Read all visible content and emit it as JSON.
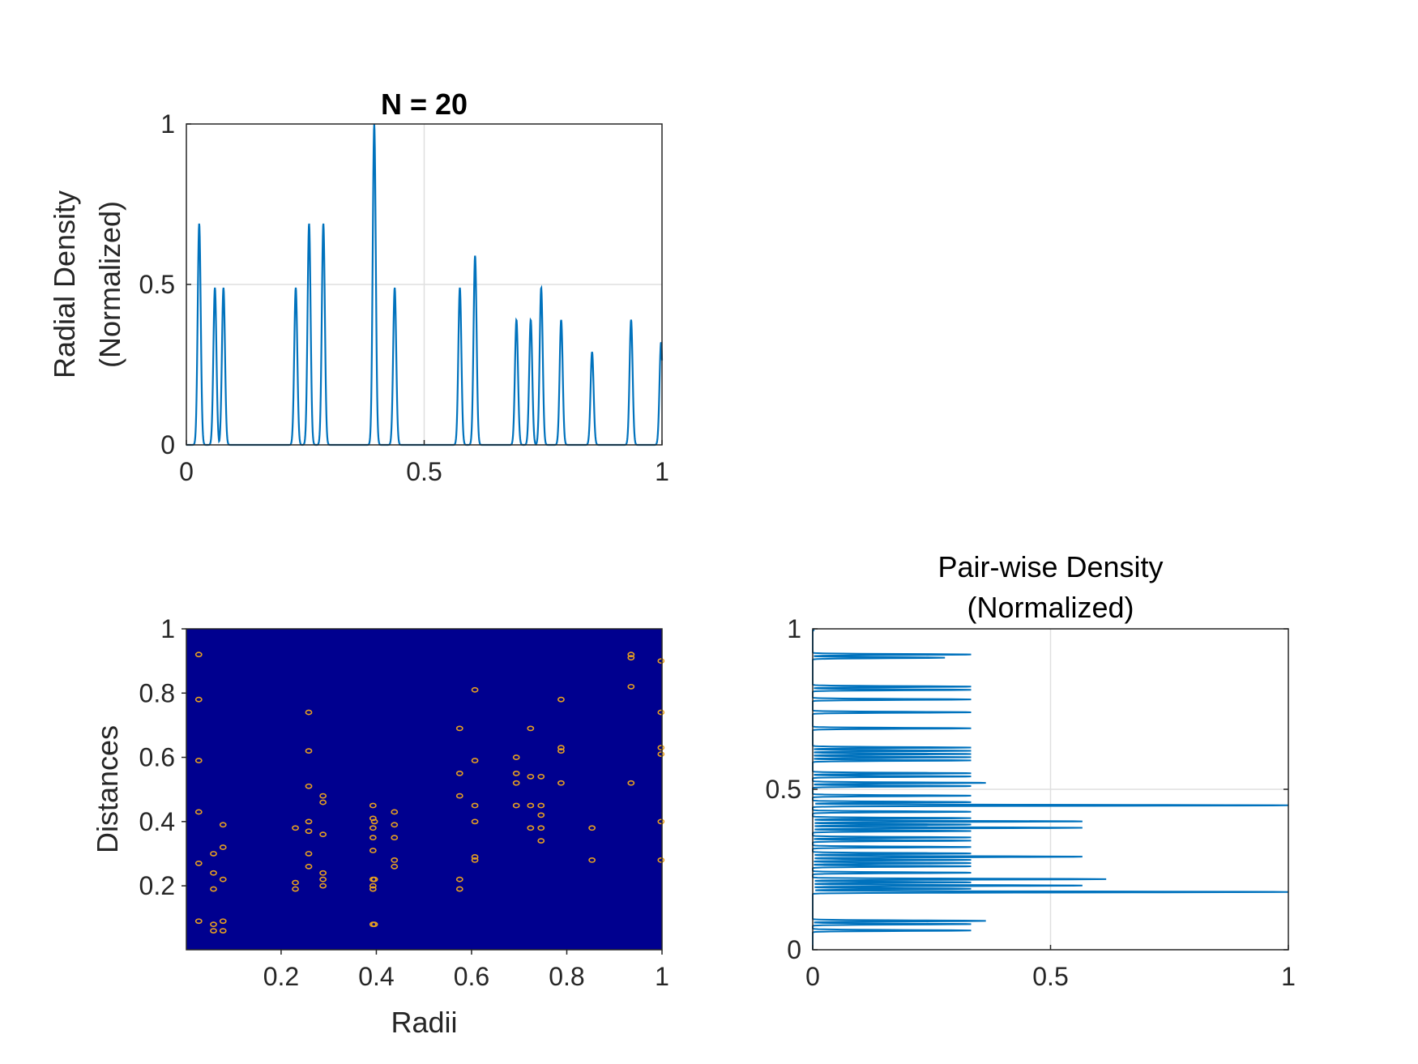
{
  "chart_data": [
    {
      "type": "line",
      "title": "N = 20",
      "xlabel": "",
      "ylabel": [
        "Radial Density",
        "(Normalized)"
      ],
      "xlim": [
        0,
        1
      ],
      "ylim": [
        0,
        1
      ],
      "xticks": [
        "0",
        "0.5",
        "1"
      ],
      "yticks": [
        "0",
        "0.5",
        "1"
      ],
      "grid": true,
      "color": "#0072BD",
      "peaks": [
        {
          "x": 0.027,
          "y": 0.69
        },
        {
          "x": 0.06,
          "y": 0.49
        },
        {
          "x": 0.078,
          "y": 0.49
        },
        {
          "x": 0.23,
          "y": 0.49
        },
        {
          "x": 0.258,
          "y": 0.69
        },
        {
          "x": 0.288,
          "y": 0.69
        },
        {
          "x": 0.395,
          "y": 1.0
        },
        {
          "x": 0.438,
          "y": 0.49
        },
        {
          "x": 0.575,
          "y": 0.49
        },
        {
          "x": 0.607,
          "y": 0.59
        },
        {
          "x": 0.694,
          "y": 0.39
        },
        {
          "x": 0.724,
          "y": 0.39
        },
        {
          "x": 0.746,
          "y": 0.49
        },
        {
          "x": 0.788,
          "y": 0.39
        },
        {
          "x": 0.853,
          "y": 0.29
        },
        {
          "x": 0.935,
          "y": 0.39
        },
        {
          "x": 0.998,
          "y": 0.32
        }
      ]
    },
    {
      "type": "heatmap",
      "title": "",
      "xlabel": "Radii",
      "ylabel": "Distances",
      "xlim": [
        0.001,
        1
      ],
      "ylim": [
        0.001,
        1
      ],
      "xticks": [
        "0.2",
        "0.4",
        "0.6",
        "0.8",
        "1"
      ],
      "yticks": [
        "0.2",
        "0.4",
        "0.6",
        "0.8",
        "1"
      ],
      "background": "#00008F",
      "marker_color": "#E8A020",
      "points": [
        [
          0.027,
          0.92
        ],
        [
          0.027,
          0.78
        ],
        [
          0.027,
          0.59
        ],
        [
          0.027,
          0.43
        ],
        [
          0.027,
          0.27
        ],
        [
          0.027,
          0.09
        ],
        [
          0.058,
          0.3
        ],
        [
          0.058,
          0.24
        ],
        [
          0.058,
          0.19
        ],
        [
          0.058,
          0.08
        ],
        [
          0.058,
          0.06
        ],
        [
          0.078,
          0.39
        ],
        [
          0.078,
          0.32
        ],
        [
          0.078,
          0.22
        ],
        [
          0.078,
          0.09
        ],
        [
          0.078,
          0.06
        ],
        [
          0.23,
          0.38
        ],
        [
          0.23,
          0.21
        ],
        [
          0.23,
          0.19
        ],
        [
          0.258,
          0.74
        ],
        [
          0.258,
          0.62
        ],
        [
          0.258,
          0.51
        ],
        [
          0.258,
          0.4
        ],
        [
          0.258,
          0.37
        ],
        [
          0.258,
          0.3
        ],
        [
          0.258,
          0.26
        ],
        [
          0.288,
          0.48
        ],
        [
          0.288,
          0.46
        ],
        [
          0.288,
          0.36
        ],
        [
          0.288,
          0.24
        ],
        [
          0.288,
          0.22
        ],
        [
          0.288,
          0.2
        ],
        [
          0.393,
          0.45
        ],
        [
          0.393,
          0.41
        ],
        [
          0.393,
          0.38
        ],
        [
          0.393,
          0.35
        ],
        [
          0.393,
          0.31
        ],
        [
          0.393,
          0.22
        ],
        [
          0.393,
          0.2
        ],
        [
          0.393,
          0.19
        ],
        [
          0.393,
          0.08
        ],
        [
          0.396,
          0.4
        ],
        [
          0.396,
          0.22
        ],
        [
          0.396,
          0.08
        ],
        [
          0.438,
          0.43
        ],
        [
          0.438,
          0.39
        ],
        [
          0.438,
          0.35
        ],
        [
          0.438,
          0.28
        ],
        [
          0.438,
          0.26
        ],
        [
          0.575,
          0.69
        ],
        [
          0.575,
          0.55
        ],
        [
          0.575,
          0.48
        ],
        [
          0.575,
          0.22
        ],
        [
          0.575,
          0.19
        ],
        [
          0.607,
          0.81
        ],
        [
          0.607,
          0.59
        ],
        [
          0.607,
          0.45
        ],
        [
          0.607,
          0.4
        ],
        [
          0.607,
          0.29
        ],
        [
          0.607,
          0.28
        ],
        [
          0.694,
          0.6
        ],
        [
          0.694,
          0.55
        ],
        [
          0.694,
          0.52
        ],
        [
          0.694,
          0.45
        ],
        [
          0.724,
          0.69
        ],
        [
          0.724,
          0.54
        ],
        [
          0.724,
          0.45
        ],
        [
          0.724,
          0.38
        ],
        [
          0.746,
          0.54
        ],
        [
          0.746,
          0.45
        ],
        [
          0.746,
          0.42
        ],
        [
          0.746,
          0.38
        ],
        [
          0.746,
          0.34
        ],
        [
          0.788,
          0.78
        ],
        [
          0.788,
          0.63
        ],
        [
          0.788,
          0.62
        ],
        [
          0.788,
          0.52
        ],
        [
          0.853,
          0.38
        ],
        [
          0.853,
          0.28
        ],
        [
          0.935,
          0.92
        ],
        [
          0.935,
          0.91
        ],
        [
          0.935,
          0.82
        ],
        [
          0.935,
          0.52
        ],
        [
          0.998,
          0.9
        ],
        [
          0.998,
          0.74
        ],
        [
          0.998,
          0.63
        ],
        [
          0.998,
          0.61
        ],
        [
          0.998,
          0.4
        ],
        [
          0.998,
          0.28
        ]
      ]
    },
    {
      "type": "line",
      "orientation": "horizontal",
      "title": [
        "Pair-wise Density",
        "(Normalized)"
      ],
      "xlabel": "",
      "ylabel": "",
      "xlim": [
        0,
        1
      ],
      "ylim": [
        0,
        1
      ],
      "xticks": [
        "0",
        "0.5",
        "1"
      ],
      "yticks": [
        "0",
        "0.5",
        "1"
      ],
      "grid": true,
      "color": "#0072BD",
      "peaks": [
        {
          "y": 0.92,
          "x": 0.333
        },
        {
          "y": 0.91,
          "x": 0.278
        },
        {
          "y": 0.82,
          "x": 0.333
        },
        {
          "y": 0.81,
          "x": 0.333
        },
        {
          "y": 0.78,
          "x": 0.333
        },
        {
          "y": 0.74,
          "x": 0.333
        },
        {
          "y": 0.69,
          "x": 0.333
        },
        {
          "y": 0.63,
          "x": 0.333
        },
        {
          "y": 0.62,
          "x": 0.333
        },
        {
          "y": 0.61,
          "x": 0.333
        },
        {
          "y": 0.6,
          "x": 0.333
        },
        {
          "y": 0.59,
          "x": 0.333
        },
        {
          "y": 0.55,
          "x": 0.333
        },
        {
          "y": 0.54,
          "x": 0.333
        },
        {
          "y": 0.52,
          "x": 0.364
        },
        {
          "y": 0.51,
          "x": 0.333
        },
        {
          "y": 0.48,
          "x": 0.333
        },
        {
          "y": 0.46,
          "x": 0.333
        },
        {
          "y": 0.45,
          "x": 1.0
        },
        {
          "y": 0.43,
          "x": 0.333
        },
        {
          "y": 0.41,
          "x": 0.333
        },
        {
          "y": 0.4,
          "x": 0.567
        },
        {
          "y": 0.39,
          "x": 0.333
        },
        {
          "y": 0.38,
          "x": 0.567
        },
        {
          "y": 0.37,
          "x": 0.333
        },
        {
          "y": 0.35,
          "x": 0.333
        },
        {
          "y": 0.34,
          "x": 0.333
        },
        {
          "y": 0.32,
          "x": 0.333
        },
        {
          "y": 0.3,
          "x": 0.333
        },
        {
          "y": 0.29,
          "x": 0.567
        },
        {
          "y": 0.28,
          "x": 0.333
        },
        {
          "y": 0.27,
          "x": 0.333
        },
        {
          "y": 0.26,
          "x": 0.333
        },
        {
          "y": 0.24,
          "x": 0.333
        },
        {
          "y": 0.22,
          "x": 0.617
        },
        {
          "y": 0.21,
          "x": 0.333
        },
        {
          "y": 0.2,
          "x": 0.567
        },
        {
          "y": 0.19,
          "x": 0.333
        },
        {
          "y": 0.18,
          "x": 1.0
        },
        {
          "y": 0.09,
          "x": 0.364
        },
        {
          "y": 0.08,
          "x": 0.333
        },
        {
          "y": 0.06,
          "x": 0.333
        }
      ]
    }
  ]
}
